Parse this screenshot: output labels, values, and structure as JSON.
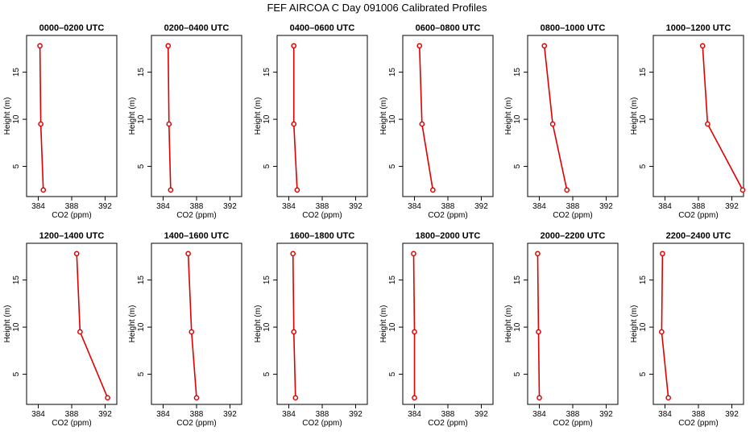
{
  "title": "FEF AIRCOA C  Day 091006  Calibrated Profiles",
  "chart_data": {
    "type": "line",
    "xlabel": "CO2 (ppm)",
    "ylabel": "Height (m)",
    "xlim": [
      382.6,
      393.4
    ],
    "ylim": [
      1.8,
      18.9
    ],
    "xticks": [
      384,
      388,
      392
    ],
    "xtick_labels": [
      "384",
      "388",
      "392"
    ],
    "yticks": [
      5,
      10,
      15
    ],
    "ytick_labels": [
      "5",
      "10",
      "15"
    ],
    "heights": [
      17.8,
      9.5,
      2.5
    ],
    "panels": [
      {
        "title": "0000–0200 UTC",
        "co2": [
          384.2,
          384.3,
          384.6
        ]
      },
      {
        "title": "0200–0400 UTC",
        "co2": [
          384.6,
          384.7,
          384.9
        ]
      },
      {
        "title": "0400–0600 UTC",
        "co2": [
          384.6,
          384.6,
          385.0
        ]
      },
      {
        "title": "0600–0800 UTC",
        "co2": [
          384.6,
          384.9,
          386.2
        ]
      },
      {
        "title": "0800–1000 UTC",
        "co2": [
          384.6,
          385.6,
          387.3
        ]
      },
      {
        "title": "1000–1200 UTC",
        "co2": [
          388.5,
          389.1,
          393.3
        ]
      },
      {
        "title": "1200–1400 UTC",
        "co2": [
          388.6,
          389.0,
          392.3
        ]
      },
      {
        "title": "1400–1600 UTC",
        "co2": [
          387.0,
          387.4,
          388.0
        ]
      },
      {
        "title": "1600–1800 UTC",
        "co2": [
          384.5,
          384.6,
          384.8
        ]
      },
      {
        "title": "1800–2000 UTC",
        "co2": [
          383.9,
          384.0,
          384.0
        ]
      },
      {
        "title": "2000–2200 UTC",
        "co2": [
          383.8,
          383.9,
          384.0
        ]
      },
      {
        "title": "2200–2400 UTC",
        "co2": [
          383.7,
          383.6,
          384.4
        ]
      }
    ]
  }
}
